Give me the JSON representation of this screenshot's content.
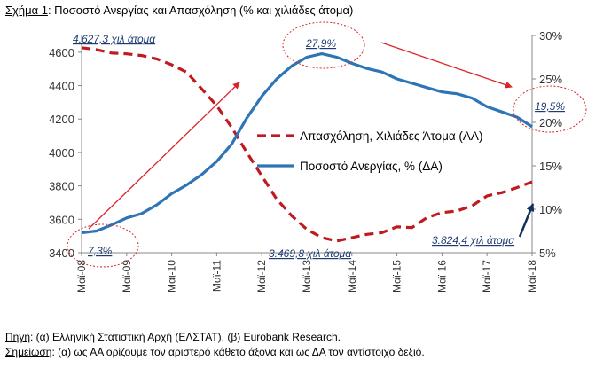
{
  "figure": {
    "title_label": "Σχήμα 1",
    "title_text": ": Ποσοστό Ανεργίας και Απασχόληση (% και χιλιάδες άτομα)"
  },
  "chart_data": {
    "type": "line",
    "x_ticks": [
      "Μαϊ-08",
      "Μαϊ-09",
      "Μαϊ-10",
      "Μαϊ-11",
      "Μαϊ-12",
      "Μαϊ-13",
      "Μαϊ-14",
      "Μαϊ-15",
      "Μαϊ-16",
      "Μαϊ-17",
      "Μαϊ-18"
    ],
    "x_start": "2008-05",
    "x_end": "2018-05",
    "y_left": {
      "ticks": [
        3400,
        3600,
        3800,
        4000,
        4200,
        4400,
        4600
      ],
      "ylim": [
        3400,
        4700
      ]
    },
    "y_right": {
      "ticks": [
        "5%",
        "10%",
        "15%",
        "20%",
        "25%",
        "30%"
      ],
      "ylim": [
        5,
        30
      ]
    },
    "grid": false,
    "legend_position": "right-center",
    "series": [
      {
        "name": "Απασχόληση, Χιλιάδες Άτομα (ΑΑ)",
        "axis": "left",
        "color": "#c0191e",
        "style": "dashed",
        "points": [
          [
            "2008-05",
            4627
          ],
          [
            "2008-09",
            4615
          ],
          [
            "2009-01",
            4595
          ],
          [
            "2009-05",
            4590
          ],
          [
            "2009-09",
            4580
          ],
          [
            "2010-01",
            4560
          ],
          [
            "2010-05",
            4525
          ],
          [
            "2010-09",
            4480
          ],
          [
            "2011-01",
            4380
          ],
          [
            "2011-05",
            4280
          ],
          [
            "2011-09",
            4150
          ],
          [
            "2012-01",
            4000
          ],
          [
            "2012-05",
            3860
          ],
          [
            "2012-09",
            3720
          ],
          [
            "2013-01",
            3620
          ],
          [
            "2013-05",
            3540
          ],
          [
            "2013-09",
            3490
          ],
          [
            "2014-01",
            3470
          ],
          [
            "2014-05",
            3490
          ],
          [
            "2014-09",
            3510
          ],
          [
            "2015-01",
            3520
          ],
          [
            "2015-05",
            3555
          ],
          [
            "2015-09",
            3550
          ],
          [
            "2016-01",
            3610
          ],
          [
            "2016-05",
            3640
          ],
          [
            "2016-09",
            3650
          ],
          [
            "2017-01",
            3680
          ],
          [
            "2017-05",
            3740
          ],
          [
            "2017-09",
            3760
          ],
          [
            "2018-01",
            3790
          ],
          [
            "2018-05",
            3824
          ]
        ]
      },
      {
        "name": "Ποσοστό Ανεργίας, % (ΔΑ)",
        "axis": "right",
        "color": "#2e75b6",
        "style": "solid",
        "points": [
          [
            "2008-05",
            7.3
          ],
          [
            "2008-09",
            7.5
          ],
          [
            "2009-01",
            8.2
          ],
          [
            "2009-05",
            9.0
          ],
          [
            "2009-09",
            9.5
          ],
          [
            "2010-01",
            10.5
          ],
          [
            "2010-05",
            11.8
          ],
          [
            "2010-09",
            12.8
          ],
          [
            "2011-01",
            14.0
          ],
          [
            "2011-05",
            15.5
          ],
          [
            "2011-09",
            17.5
          ],
          [
            "2012-01",
            20.5
          ],
          [
            "2012-05",
            23.0
          ],
          [
            "2012-09",
            25.0
          ],
          [
            "2013-01",
            26.5
          ],
          [
            "2013-05",
            27.5
          ],
          [
            "2013-09",
            27.9
          ],
          [
            "2014-01",
            27.5
          ],
          [
            "2014-05",
            26.8
          ],
          [
            "2014-09",
            26.2
          ],
          [
            "2015-01",
            25.8
          ],
          [
            "2015-05",
            25.0
          ],
          [
            "2015-09",
            24.5
          ],
          [
            "2016-01",
            24.0
          ],
          [
            "2016-05",
            23.5
          ],
          [
            "2016-09",
            23.3
          ],
          [
            "2017-01",
            22.8
          ],
          [
            "2017-05",
            21.8
          ],
          [
            "2017-09",
            21.2
          ],
          [
            "2018-01",
            20.6
          ],
          [
            "2018-05",
            19.5
          ]
        ]
      }
    ]
  },
  "annotations": {
    "emp_start": "4.627,3 χιλ άτομα",
    "emp_min": "3.469,8 χιλ άτομα",
    "emp_end": "3.824,4 χιλ άτομα",
    "unemp_start": "7,3%",
    "unemp_peak": "27,9%",
    "unemp_end": "19,5%"
  },
  "notes": {
    "source_label": "Πηγή",
    "source_text": ": (α) Ελληνική Στατιστική Αρχή (ΕΛΣΤΑΤ), (β) Eurobank Research.",
    "note_label": "Σημείωση",
    "note_text": ": (α) ως ΑΑ ορίζουμε τον αριστερό κάθετο άξονα και ως ΔΑ τον αντίστοιχο δεξιό."
  }
}
